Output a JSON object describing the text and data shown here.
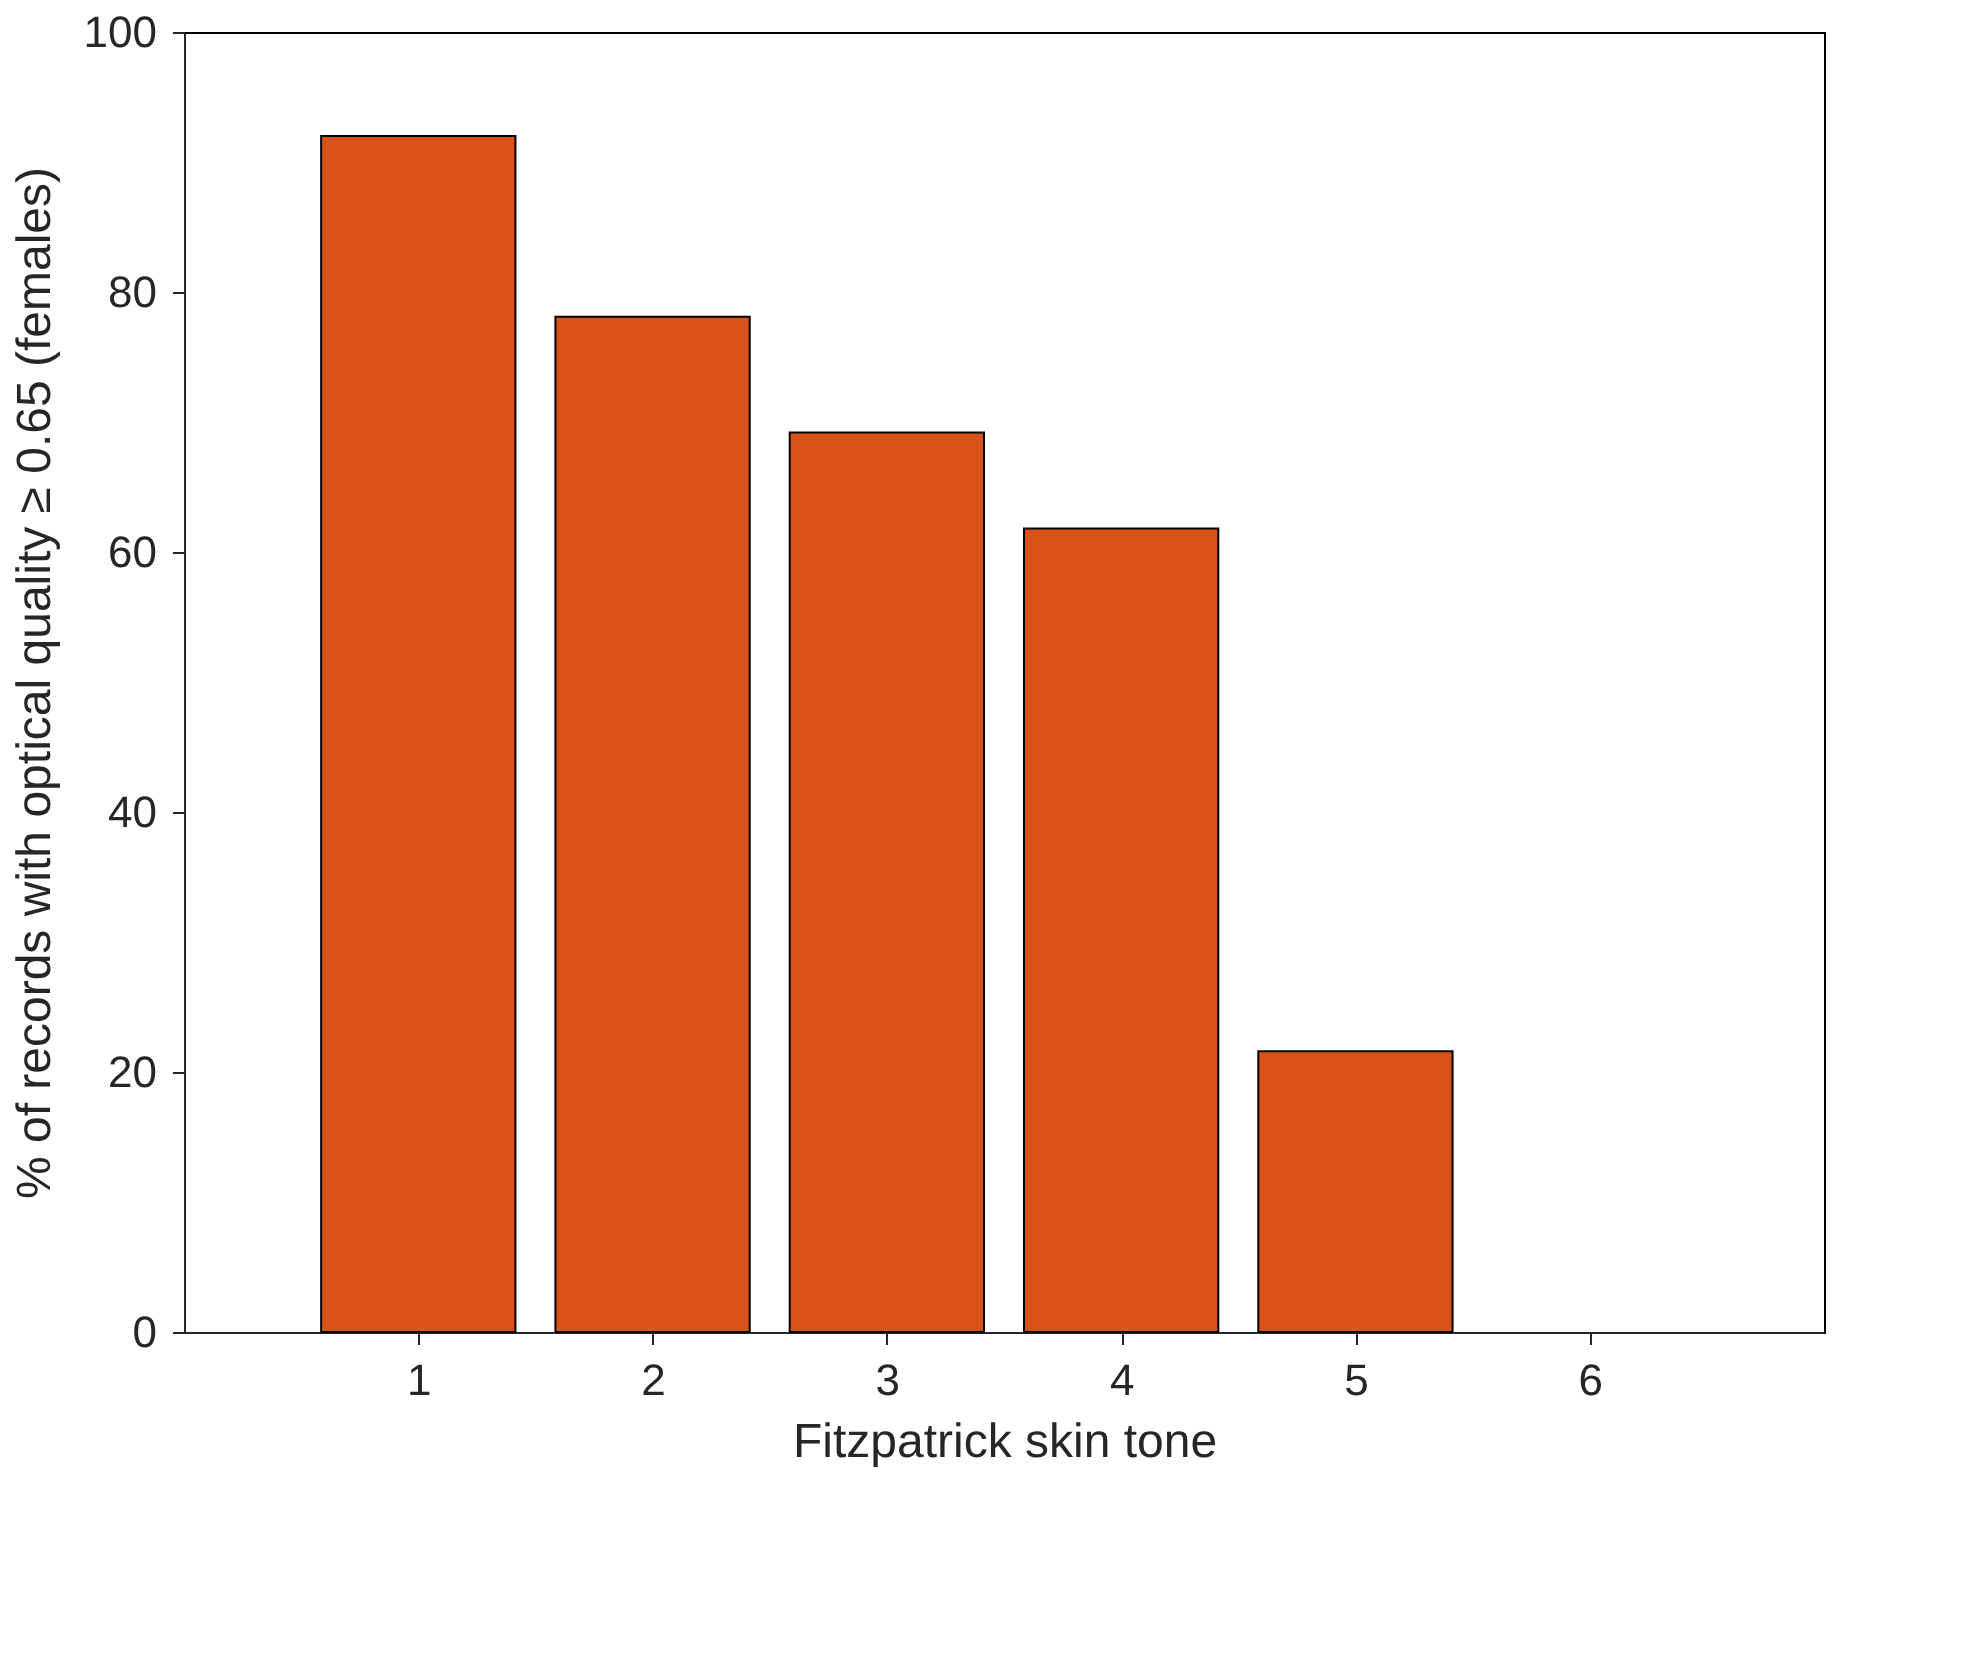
{
  "chart_data": {
    "type": "bar",
    "xlabel": "Fitzpatrick skin tone",
    "ylabel": "% of records with optical quality ≥ 0.65 (females)",
    "x": [
      1,
      2,
      3,
      4,
      5,
      6
    ],
    "values": [
      92.0,
      78.1,
      69.2,
      61.8,
      21.6,
      0
    ],
    "color": "#d95319",
    "xlim": [
      0,
      7
    ],
    "xticks": [
      1,
      2,
      3,
      4,
      5,
      6
    ],
    "ylim": [
      0,
      100
    ],
    "yticks": [
      0,
      20,
      40,
      60,
      80,
      100
    ],
    "grid": false
  }
}
